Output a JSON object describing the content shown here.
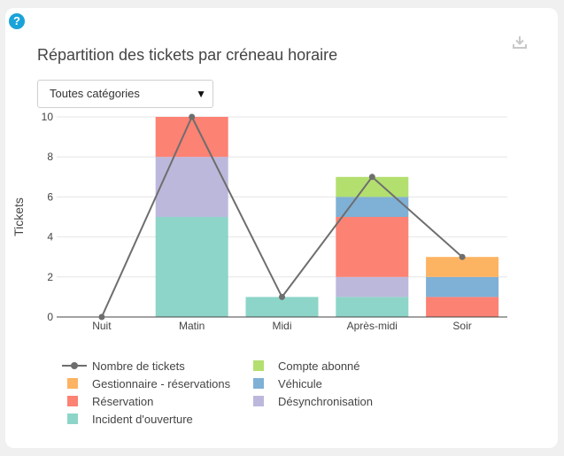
{
  "help_icon": {
    "glyph": "?",
    "color": "#1aa3d9"
  },
  "download_icon": "download-icon",
  "filter": {
    "selected": "Toutes catégories",
    "arrow": "▼"
  },
  "chart_data": {
    "type": "bar",
    "title": "Répartition des tickets par créneau horaire",
    "xlabel": "",
    "ylabel": "Tickets",
    "ylim": [
      0,
      10
    ],
    "yticks": [
      0,
      2,
      4,
      6,
      8,
      10
    ],
    "categories": [
      "Nuit",
      "Matin",
      "Midi",
      "Après-midi",
      "Soir"
    ],
    "stacked": true,
    "grid": true,
    "legend_position": "bottom",
    "series": [
      {
        "name": "Incident d'ouverture",
        "color": "#8dd5c8",
        "values": [
          0,
          5,
          1,
          1,
          0
        ]
      },
      {
        "name": "Désynchronisation",
        "color": "#bcb8dc",
        "values": [
          0,
          3,
          0,
          1,
          0
        ]
      },
      {
        "name": "Réservation",
        "color": "#fc8273",
        "values": [
          0,
          2,
          0,
          3,
          1
        ]
      },
      {
        "name": "Véhicule",
        "color": "#7fb0d6",
        "values": [
          0,
          0,
          0,
          1,
          1
        ]
      },
      {
        "name": "Gestionnaire - réservations",
        "color": "#fcb462",
        "values": [
          0,
          0,
          0,
          0,
          1
        ]
      },
      {
        "name": "Compte abonné",
        "color": "#b3df6f",
        "values": [
          0,
          0,
          0,
          1,
          0
        ]
      }
    ],
    "line_series": {
      "name": "Nombre de tickets",
      "color": "#6e6e6e",
      "values": [
        0,
        10,
        1,
        7,
        3
      ]
    }
  }
}
